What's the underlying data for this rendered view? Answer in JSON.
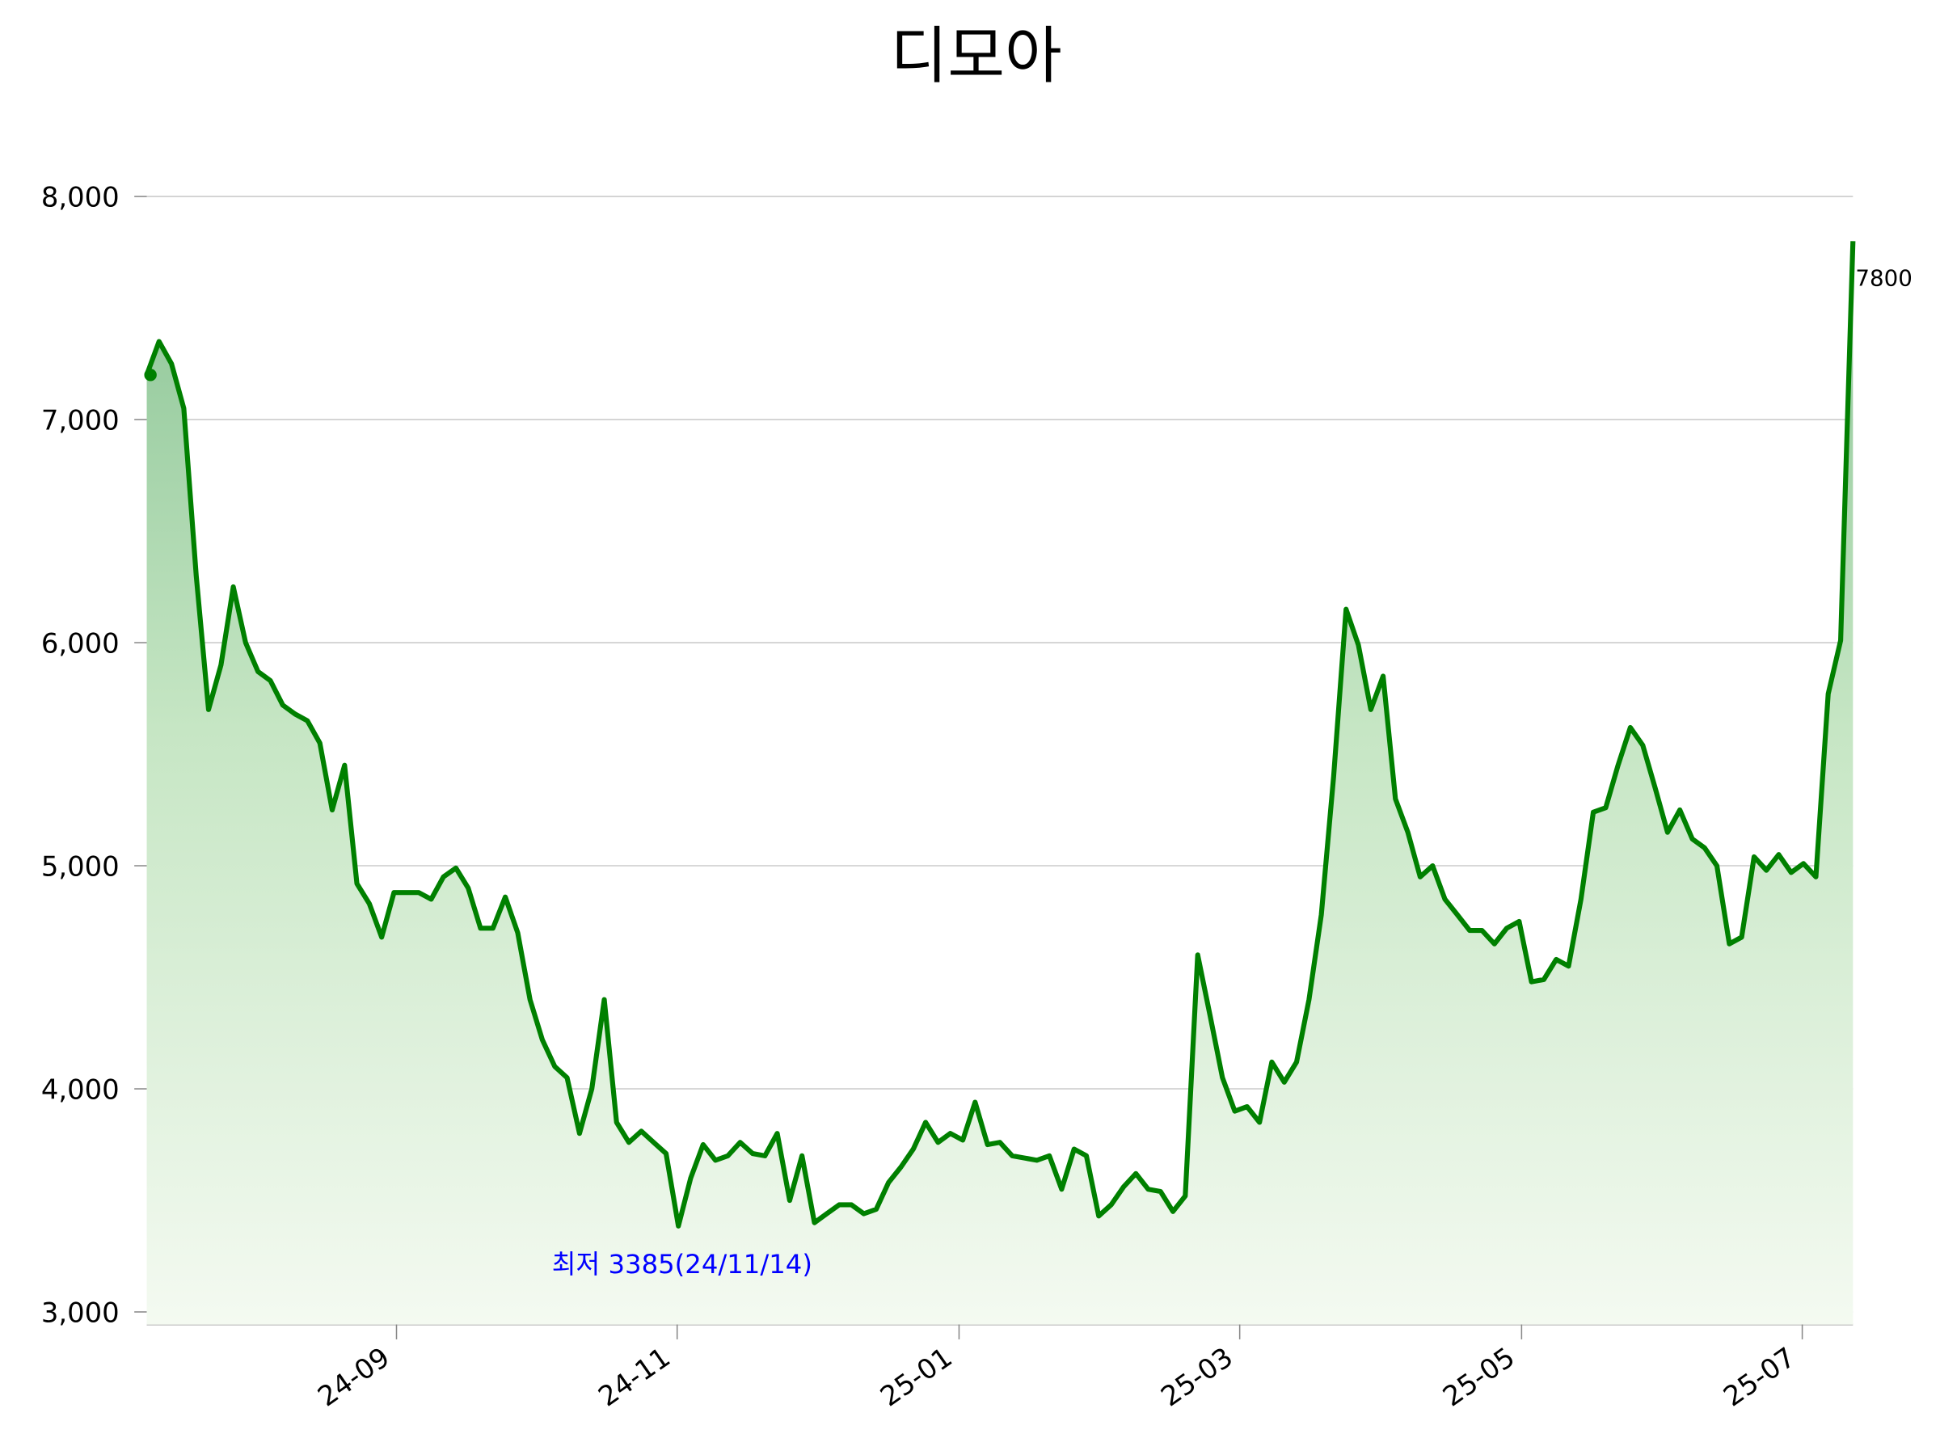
{
  "chart_data": {
    "type": "line",
    "title": "디모아",
    "categories": [
      null,
      null,
      null,
      null,
      null,
      null,
      null,
      null,
      null,
      null,
      null,
      null,
      null,
      null,
      null,
      null,
      null,
      null,
      null,
      null,
      null,
      null,
      null,
      null,
      null,
      null,
      null,
      null,
      null,
      null,
      null,
      null,
      null,
      null,
      null,
      null,
      null,
      null,
      null,
      null,
      null,
      null,
      null,
      null,
      null,
      null,
      null,
      null,
      null,
      null,
      null,
      null,
      null,
      null,
      null,
      null,
      null,
      null,
      null,
      null,
      null,
      null,
      null,
      null,
      null,
      null,
      null,
      null,
      null,
      null,
      null,
      null,
      null,
      null,
      null,
      null,
      null,
      null,
      null,
      null,
      null,
      null,
      null,
      null,
      null,
      null,
      null,
      null,
      null,
      null,
      null,
      null,
      null,
      null,
      null,
      null,
      null,
      null,
      null,
      null,
      null,
      null,
      null,
      null,
      null,
      null,
      null,
      null,
      null,
      null,
      null,
      null,
      null,
      null,
      null,
      null,
      null,
      null,
      null,
      null,
      null,
      null,
      null,
      null,
      null,
      null,
      null,
      null,
      null,
      null,
      null,
      null,
      null,
      null,
      null,
      null,
      null,
      null,
      null
    ],
    "values": [
      7200,
      7350,
      7250,
      7050,
      6300,
      5700,
      5900,
      6250,
      6000,
      5870,
      5830,
      5720,
      5680,
      5650,
      5550,
      5250,
      5450,
      4920,
      4830,
      4680,
      4880,
      4880,
      4880,
      4850,
      4950,
      4990,
      4900,
      4720,
      4720,
      4860,
      4700,
      4400,
      4220,
      4100,
      4050,
      3800,
      4000,
      4400,
      3850,
      3760,
      3810,
      3760,
      3710,
      3385,
      3600,
      3750,
      3680,
      3700,
      3760,
      3710,
      3700,
      3800,
      3500,
      3700,
      3400,
      3440,
      3480,
      3480,
      3440,
      3460,
      3580,
      3650,
      3730,
      3850,
      3760,
      3800,
      3770,
      3940,
      3750,
      3760,
      3700,
      3690,
      3680,
      3700,
      3550,
      3730,
      3700,
      3430,
      3480,
      3560,
      3620,
      3550,
      3540,
      3450,
      3520,
      4600,
      4330,
      4050,
      3900,
      3920,
      3850,
      4120,
      4030,
      4120,
      4400,
      4780,
      5400,
      6150,
      5990,
      5700,
      5850,
      5300,
      5150,
      4950,
      5000,
      4850,
      4780,
      4710,
      4710,
      4650,
      4720,
      4750,
      4480,
      4490,
      4580,
      4550,
      4850,
      5240,
      5260,
      5450,
      5620,
      5540,
      5350,
      5150,
      5250,
      5120,
      5080,
      5000,
      4650,
      4680,
      5040,
      4980,
      5050,
      4970,
      5010,
      4950,
      5770,
      6010,
      7800
    ],
    "color": "#008000",
    "ylim": [
      2944,
      8000
    ],
    "yticks": [
      {
        "value": 3000,
        "label": "3,000"
      },
      {
        "value": 4000,
        "label": "4,000"
      },
      {
        "value": 5000,
        "label": "5,000"
      },
      {
        "value": 6000,
        "label": "6,000"
      },
      {
        "value": 7000,
        "label": "7,000"
      },
      {
        "value": 8000,
        "label": "8,000"
      }
    ],
    "xlim": [
      0,
      138
    ],
    "xticks": [
      {
        "value": 20.2,
        "label": "24-09"
      },
      {
        "value": 42.9,
        "label": "24-11"
      },
      {
        "value": 65.7,
        "label": "25-01"
      },
      {
        "value": 88.4,
        "label": "25-03"
      },
      {
        "value": 111.2,
        "label": "25-05"
      },
      {
        "value": 133.9,
        "label": "25-07"
      }
    ],
    "annotation": {
      "text": "최저 3385(24/11/14)",
      "color": "#0000ff"
    },
    "grid": true
  }
}
